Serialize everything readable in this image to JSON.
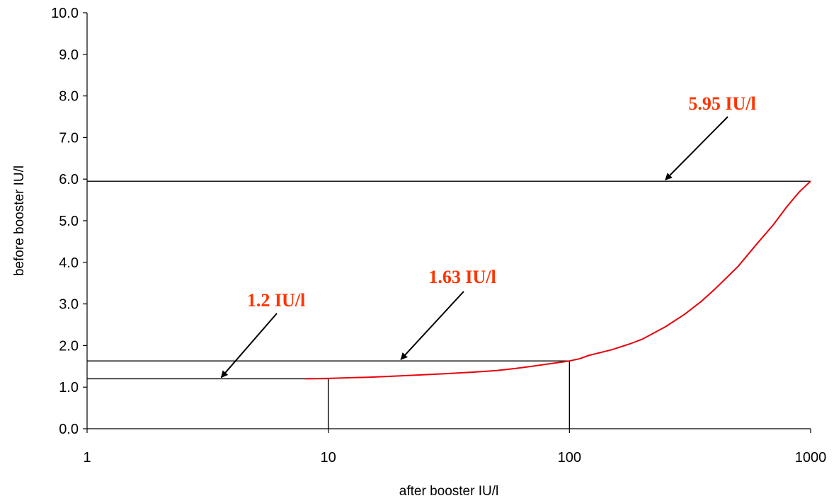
{
  "chart_data": {
    "type": "line",
    "xlabel": "after booster IU/l",
    "ylabel": "before booster IU/l",
    "x_scale": "log",
    "xlim": [
      1,
      1000
    ],
    "ylim": [
      0,
      10
    ],
    "x_ticks": [
      "1",
      "10",
      "100",
      "1000"
    ],
    "y_ticks": [
      "0.0",
      "1.0",
      "2.0",
      "3.0",
      "4.0",
      "5.0",
      "6.0",
      "7.0",
      "8.0",
      "9.0",
      "10.0"
    ],
    "grid": false,
    "legend": "none",
    "series": [
      {
        "color": "#e8000b",
        "x": [
          8,
          10,
          15,
          20,
          30,
          40,
          50,
          60,
          70,
          80,
          90,
          100,
          110,
          120,
          150,
          180,
          200,
          250,
          300,
          350,
          400,
          500,
          600,
          700,
          800,
          900,
          1000
        ],
        "y": [
          1.2,
          1.21,
          1.24,
          1.27,
          1.32,
          1.36,
          1.4,
          1.45,
          1.5,
          1.55,
          1.59,
          1.63,
          1.68,
          1.76,
          1.9,
          2.05,
          2.15,
          2.45,
          2.75,
          3.05,
          3.35,
          3.9,
          4.45,
          4.9,
          5.35,
          5.7,
          5.95
        ]
      }
    ],
    "reference_lines": [
      {
        "type": "horizontal",
        "y": 5.95,
        "x_from": 1,
        "x_to": 1000
      },
      {
        "type": "horizontal",
        "y": 1.63,
        "x_from": 1,
        "x_to": 100
      },
      {
        "type": "horizontal",
        "y": 1.2,
        "x_from": 1,
        "x_to": 10
      },
      {
        "type": "vertical",
        "x": 100,
        "y_from": 0,
        "y_to": 1.63
      },
      {
        "type": "vertical",
        "x": 10,
        "y_from": 0,
        "y_to": 1.2
      }
    ],
    "annotations": [
      {
        "text": "5.95 IU/l",
        "color": "#ff3300",
        "target": {
          "x": 250,
          "y": 5.95
        }
      },
      {
        "text": "1.63 IU/l",
        "color": "#ff3300",
        "target": {
          "x": 20,
          "y": 1.63
        }
      },
      {
        "text": "1.2 IU/l",
        "color": "#ff3300",
        "target": {
          "x": 3.6,
          "y": 1.2
        }
      }
    ]
  }
}
